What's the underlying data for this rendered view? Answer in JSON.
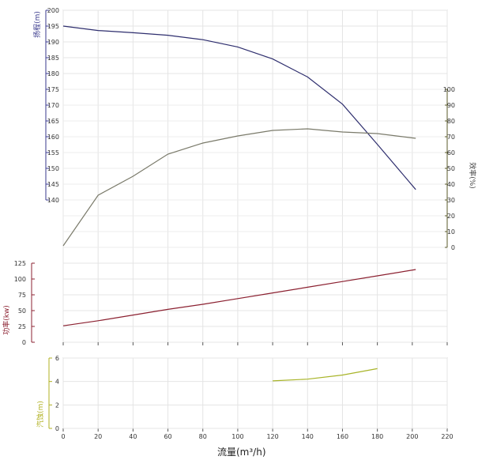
{
  "chart_data": [
    {
      "type": "line",
      "name": "main",
      "xlabel": "流量(m³/h)",
      "xlim": [
        0,
        220
      ],
      "x_ticks": [
        "0",
        "20",
        "40",
        "60",
        "80",
        "100",
        "120",
        "140",
        "160",
        "180",
        "200",
        "220"
      ],
      "grid": true,
      "axes": {
        "head": {
          "label": "扬程(m)",
          "color": "#3a3a8c",
          "lim": [
            140,
            200
          ],
          "ticks": [
            "140",
            "145",
            "150",
            "155",
            "160",
            "165",
            "170",
            "175",
            "180",
            "185",
            "190",
            "195",
            "200"
          ]
        },
        "efficiency": {
          "label": "效率(%)",
          "color": "#5a5a2a",
          "lim": [
            0,
            100
          ],
          "ticks": [
            "0",
            "10",
            "20",
            "30",
            "40",
            "50",
            "60",
            "70",
            "80",
            "90",
            "100"
          ]
        },
        "power": {
          "label": "功率(kw)",
          "color": "#8b2030",
          "lim": [
            0,
            125
          ],
          "ticks": [
            "0",
            "25",
            "50",
            "75",
            "100",
            "125"
          ]
        }
      },
      "series": [
        {
          "axis": "head",
          "color": "#2e2e6e",
          "x": [
            0,
            20,
            40,
            60,
            80,
            100,
            120,
            140,
            160,
            180,
            202
          ],
          "y": [
            195,
            193.6,
            192.9,
            192.1,
            190.7,
            188.4,
            184.6,
            178.9,
            170.3,
            157.6,
            143.3
          ]
        },
        {
          "axis": "efficiency",
          "color": "#7a7a6a",
          "x": [
            0,
            20,
            40,
            60,
            80,
            100,
            120,
            140,
            160,
            180,
            202
          ],
          "y": [
            1,
            33,
            45,
            59,
            66,
            70.5,
            74,
            75,
            73,
            72,
            69
          ]
        },
        {
          "axis": "power",
          "color": "#8b2030",
          "x": [
            0,
            20,
            40,
            60,
            80,
            100,
            120,
            140,
            160,
            180,
            202
          ],
          "y": [
            26,
            34,
            43,
            52,
            60,
            69,
            78,
            87,
            96,
            105,
            115
          ]
        }
      ]
    },
    {
      "type": "line",
      "name": "npsh",
      "xlabel": "流量(m³/h)",
      "xlim": [
        0,
        220
      ],
      "x_ticks": [
        "0",
        "20",
        "40",
        "60",
        "80",
        "100",
        "120",
        "140",
        "160",
        "180",
        "200",
        "220"
      ],
      "grid": true,
      "axes": {
        "npsh": {
          "label": "汽蚀(m)",
          "color": "#b0b020",
          "lim": [
            0,
            6
          ],
          "ticks": [
            "0",
            "2",
            "4",
            "6"
          ]
        }
      },
      "series": [
        {
          "axis": "npsh",
          "color": "#a8b428",
          "x": [
            120,
            140,
            160,
            180
          ],
          "y": [
            4.05,
            4.2,
            4.55,
            5.1
          ]
        }
      ]
    }
  ]
}
